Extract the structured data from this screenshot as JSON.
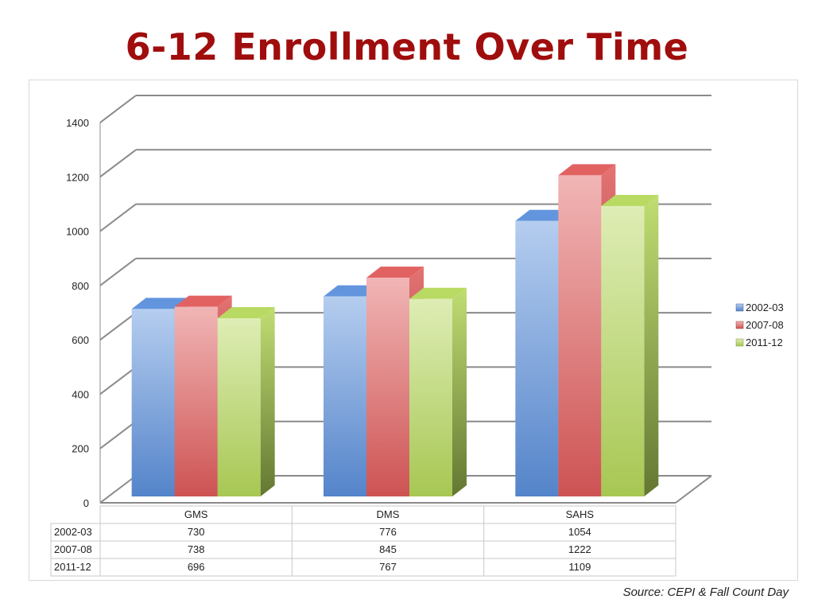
{
  "slide": {
    "title": "6-12 Enrollment Over Time",
    "source": "Source:  CEPI & Fall Count Day"
  },
  "chart_data": {
    "type": "bar",
    "style": "3d-clustered-column",
    "categories": [
      "GMS",
      "DMS",
      "SAHS"
    ],
    "series": [
      {
        "name": "2002-03",
        "values": [
          730,
          776,
          1054
        ],
        "color": "#5b8fdc"
      },
      {
        "name": "2007-08",
        "values": [
          738,
          845,
          1222
        ],
        "color": "#e05a5a"
      },
      {
        "name": "2011-12",
        "values": [
          696,
          767,
          1109
        ],
        "color": "#b5d85a"
      }
    ],
    "yticks": [
      0,
      200,
      400,
      600,
      800,
      1000,
      1200,
      1400
    ],
    "ylim": [
      0,
      1400
    ],
    "grid": true,
    "legend": "right",
    "data_table": true
  }
}
